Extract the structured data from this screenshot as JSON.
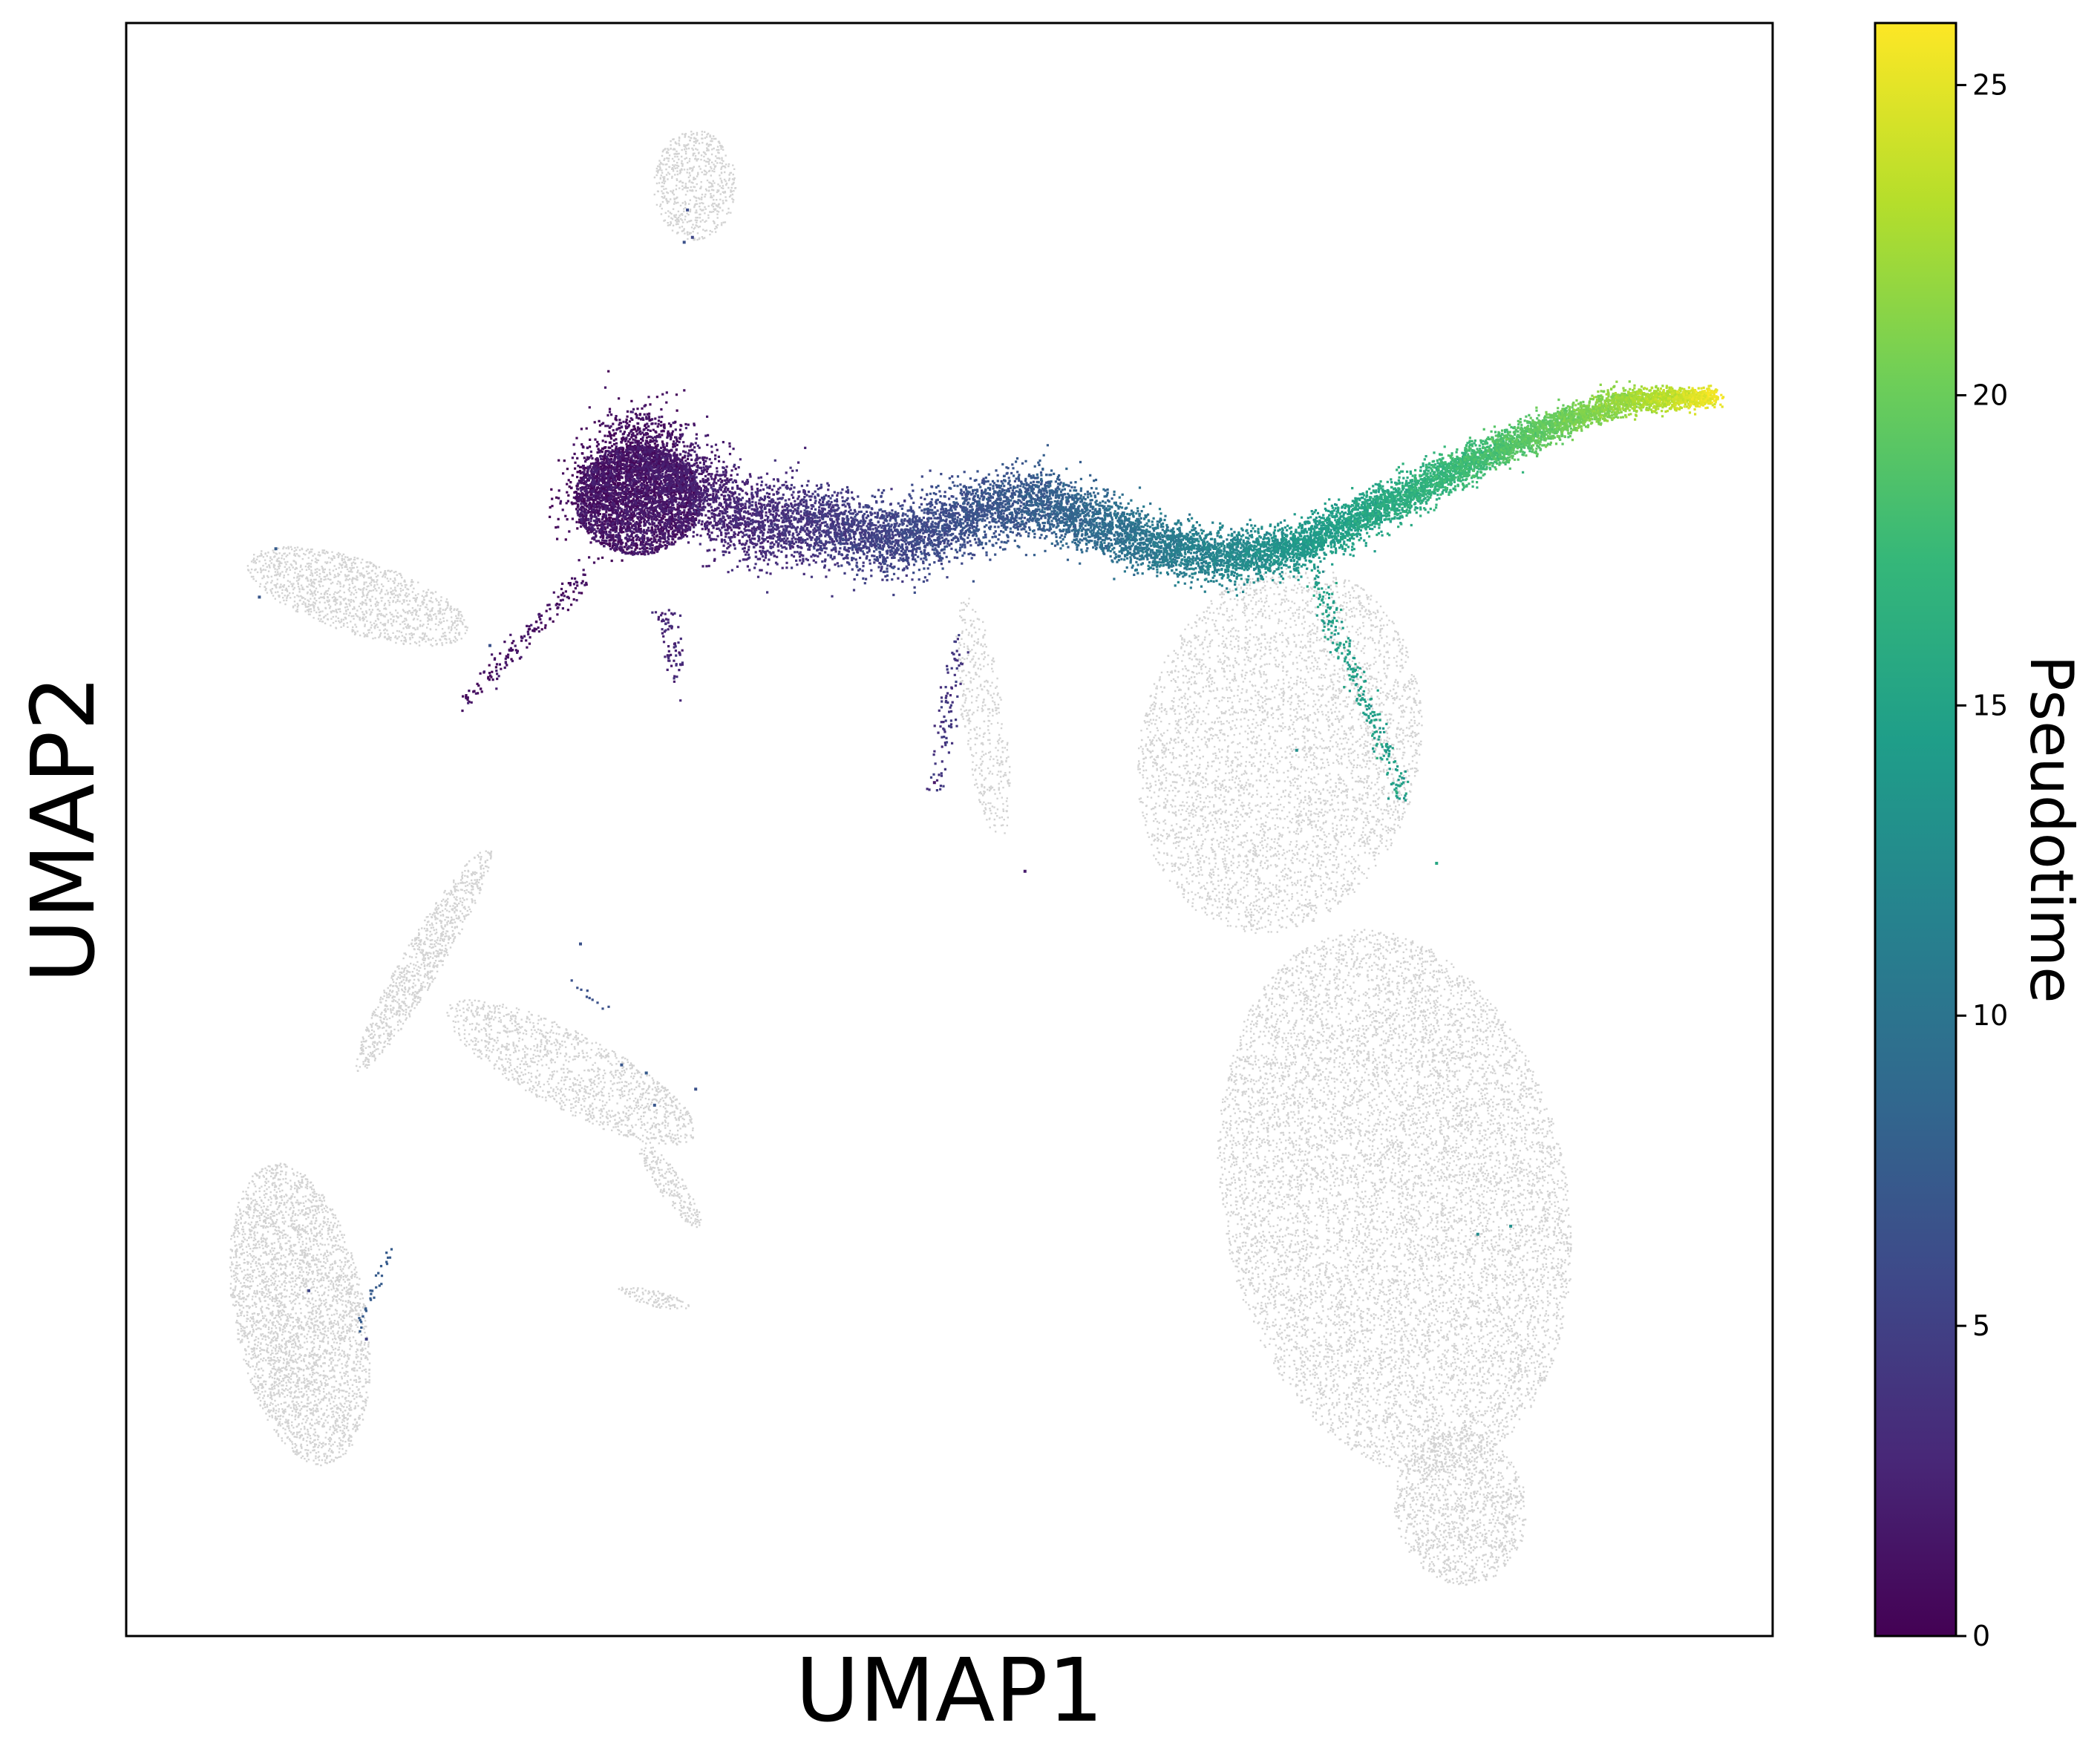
{
  "chart_data": {
    "type": "scatter",
    "title": "",
    "xlabel": "UMAP1",
    "ylabel": "UMAP2",
    "xticks": [],
    "yticks": [],
    "grid": false,
    "background_color": "#d3d3d3",
    "colorbar": {
      "label": "Pseudotime",
      "position": "right",
      "colormap": "viridis",
      "colormap_stops": [
        "#440154",
        "#482878",
        "#3e4989",
        "#31688e",
        "#26828e",
        "#1f9e89",
        "#35b779",
        "#6ece58",
        "#b5de2b",
        "#fde725"
      ],
      "range": [
        0,
        26
      ],
      "ticks": [
        0,
        5,
        10,
        15,
        20,
        25
      ],
      "tick_labels": [
        "0",
        "5",
        "10",
        "15",
        "20",
        "25"
      ]
    },
    "xlim": [
      0,
      100
    ],
    "ylim": [
      0,
      100
    ],
    "background_clusters": [
      {
        "name": "top-island",
        "cx": 34.5,
        "cy": 90.0,
        "rx": 2.5,
        "ry": 3.4,
        "n": 650
      },
      {
        "name": "left-arm-top",
        "cx": 14.0,
        "cy": 64.5,
        "rx": 7.0,
        "ry": 2.3,
        "rot": -18,
        "n": 1300
      },
      {
        "name": "left-trunk",
        "cx": 18.0,
        "cy": 42.0,
        "rx": 8.0,
        "ry": 1.2,
        "rot": 60,
        "n": 900
      },
      {
        "name": "middle-branch",
        "cx": 27.0,
        "cy": 35.0,
        "rx": 8.5,
        "ry": 2.4,
        "rot": -28,
        "n": 1300
      },
      {
        "name": "middle-branch-tip",
        "cx": 33.0,
        "cy": 28.0,
        "rx": 3.2,
        "ry": 0.8,
        "rot": -55,
        "n": 220
      },
      {
        "name": "left-lobe",
        "cx": 10.5,
        "cy": 20.0,
        "rx": 4.0,
        "ry": 9.5,
        "rot": 10,
        "n": 3400
      },
      {
        "name": "right-landmass-upper",
        "cx": 70.0,
        "cy": 55.0,
        "rx": 8.5,
        "ry": 11.5,
        "rot": -12,
        "n": 4300
      },
      {
        "name": "right-landmass-lower",
        "cx": 77.0,
        "cy": 27.0,
        "rx": 10.5,
        "ry": 17.0,
        "rot": 10,
        "n": 9200
      },
      {
        "name": "right-landmass-tail",
        "cx": 81.0,
        "cy": 8.0,
        "rx": 4.0,
        "ry": 4.8,
        "rot": 10,
        "n": 1300
      },
      {
        "name": "mid-wisp",
        "cx": 52.0,
        "cy": 57.0,
        "rx": 1.3,
        "ry": 7.5,
        "rot": 8,
        "n": 420
      },
      {
        "name": "small-patch",
        "cx": 32.0,
        "cy": 21.0,
        "rx": 2.2,
        "ry": 0.5,
        "rot": -15,
        "n": 110
      }
    ],
    "trajectory": [
      {
        "x": 28.0,
        "y": 70.0,
        "t": 0.5
      },
      {
        "x": 31.0,
        "y": 74.0,
        "t": 0.8
      },
      {
        "x": 34.0,
        "y": 71.5,
        "t": 1.8
      },
      {
        "x": 38.0,
        "y": 69.0,
        "t": 3.0
      },
      {
        "x": 42.0,
        "y": 69.0,
        "t": 4.0
      },
      {
        "x": 47.0,
        "y": 68.0,
        "t": 5.3
      },
      {
        "x": 51.0,
        "y": 69.5,
        "t": 6.3
      },
      {
        "x": 55.0,
        "y": 70.5,
        "t": 7.3
      },
      {
        "x": 59.0,
        "y": 69.0,
        "t": 8.8
      },
      {
        "x": 63.0,
        "y": 67.5,
        "t": 10.5
      },
      {
        "x": 67.0,
        "y": 67.0,
        "t": 12.0
      },
      {
        "x": 71.0,
        "y": 67.5,
        "t": 13.5
      },
      {
        "x": 75.0,
        "y": 69.5,
        "t": 15.0
      },
      {
        "x": 79.0,
        "y": 71.5,
        "t": 16.5
      },
      {
        "x": 83.0,
        "y": 73.5,
        "t": 18.2
      },
      {
        "x": 87.0,
        "y": 75.3,
        "t": 19.8
      },
      {
        "x": 91.0,
        "y": 76.7,
        "t": 21.8
      },
      {
        "x": 94.0,
        "y": 76.8,
        "t": 23.5
      },
      {
        "x": 96.5,
        "y": 76.9,
        "t": 25.5
      }
    ],
    "colored_branches": [
      {
        "name": "root-cluster",
        "cx": 31.0,
        "cy": 70.5,
        "rx": 3.8,
        "ry": 3.4,
        "t_min": 0.0,
        "t_max": 2.5,
        "n": 2600
      },
      {
        "name": "stream-to-left",
        "x0": 28.0,
        "y0": 66.0,
        "x1": 20.5,
        "y1": 58.0,
        "t": 1.0,
        "n": 160
      },
      {
        "name": "drop-below-root",
        "x0": 32.5,
        "y0": 64.0,
        "x1": 33.5,
        "y1": 59.5,
        "t": 2.5,
        "n": 70
      },
      {
        "name": "mid-descent",
        "x0": 50.5,
        "y0": 62.0,
        "x1": 49.0,
        "y1": 52.5,
        "t": 4.0,
        "n": 90
      },
      {
        "name": "right-descent",
        "x0": 72.0,
        "y0": 66.0,
        "x1": 77.5,
        "y1": 52.0,
        "t": 14.5,
        "n": 260
      }
    ],
    "stray_points": [
      {
        "x": 34.0,
        "y": 88.5,
        "t": 6.0
      },
      {
        "x": 33.8,
        "y": 86.5,
        "t": 6.5
      },
      {
        "x": 34.3,
        "y": 86.8,
        "t": 5.5
      },
      {
        "x": 9.0,
        "y": 67.5,
        "t": 7.5
      },
      {
        "x": 8.0,
        "y": 64.5,
        "t": 7.0
      },
      {
        "x": 22.0,
        "y": 61.5,
        "t": 6.5
      },
      {
        "x": 54.5,
        "y": 47.5,
        "t": 2.0
      },
      {
        "x": 49.0,
        "y": 53.0,
        "t": 1.5
      },
      {
        "x": 27.5,
        "y": 43.0,
        "t": 6.5
      },
      {
        "x": 30.0,
        "y": 35.5,
        "t": 7.0
      },
      {
        "x": 31.5,
        "y": 35.0,
        "t": 7.5
      },
      {
        "x": 32.0,
        "y": 33.0,
        "t": 7.0
      },
      {
        "x": 34.5,
        "y": 34.0,
        "t": 6.5
      },
      {
        "x": 14.5,
        "y": 18.5,
        "t": 5.0
      },
      {
        "x": 11.0,
        "y": 21.5,
        "t": 5.5
      },
      {
        "x": 82.0,
        "y": 25.0,
        "t": 12.5
      },
      {
        "x": 84.0,
        "y": 25.5,
        "t": 13.0
      },
      {
        "x": 71.0,
        "y": 55.0,
        "t": 13.0
      },
      {
        "x": 79.5,
        "y": 48.0,
        "t": 15.5
      }
    ],
    "stray_lines": [
      {
        "x0": 14.0,
        "y0": 19.0,
        "x1": 16.0,
        "y1": 24.0,
        "t": 7.5,
        "n": 28
      },
      {
        "x0": 27.0,
        "y0": 40.5,
        "x1": 29.0,
        "y1": 39.0,
        "t": 6.5,
        "n": 10
      }
    ]
  }
}
